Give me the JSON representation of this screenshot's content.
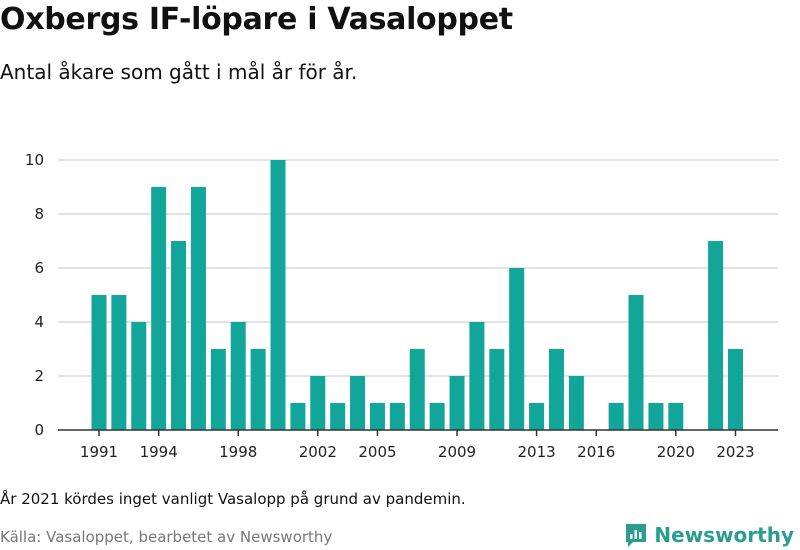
{
  "header": {
    "title": "Oxbergs IF-löpare i Vasaloppet",
    "subtitle": "Antal åkare som gått i mål år för år."
  },
  "footer": {
    "note": "År 2021 kördes inget vanligt Vasalopp på grund av pandemin.",
    "source": "Källa: Vasaloppet, bearbetet av Newsworthy",
    "brand": "Newsworthy",
    "brand_icon": "newsworthy-logo-icon"
  },
  "colors": {
    "bar": "#12a69a",
    "grid": "#d9d9d9",
    "axis": "#333333",
    "brand": "#2a9d8f"
  },
  "chart_data": {
    "type": "bar",
    "title": "Oxbergs IF-löpare i Vasaloppet",
    "subtitle": "Antal åkare som gått i mål år för år.",
    "categories": [
      1991,
      1992,
      1993,
      1994,
      1995,
      1996,
      1997,
      1998,
      1999,
      2000,
      2001,
      2002,
      2003,
      2004,
      2005,
      2006,
      2007,
      2008,
      2009,
      2010,
      2011,
      2012,
      2013,
      2014,
      2015,
      2016,
      2017,
      2018,
      2019,
      2020,
      2021,
      2022,
      2023
    ],
    "values": [
      5,
      5,
      4,
      9,
      7,
      9,
      3,
      4,
      3,
      10,
      1,
      2,
      1,
      2,
      1,
      1,
      3,
      1,
      2,
      4,
      3,
      6,
      1,
      3,
      2,
      0,
      1,
      5,
      1,
      1,
      0,
      7,
      3
    ],
    "x_tick_labels": [
      "1991",
      "1994",
      "1998",
      "2002",
      "2005",
      "2009",
      "2013",
      "2016",
      "2020",
      "2023"
    ],
    "y_ticks": [
      0,
      2,
      4,
      6,
      8,
      10
    ],
    "ylim": [
      0,
      10
    ],
    "xlabel": "",
    "ylabel": "",
    "grid": true,
    "legend": "none"
  }
}
